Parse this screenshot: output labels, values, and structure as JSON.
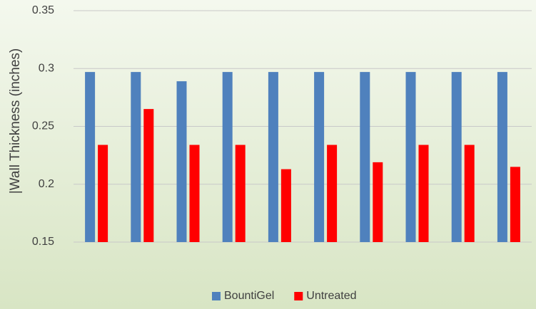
{
  "chart_data": {
    "type": "bar",
    "y_label": "|Wall Thickness (inches)",
    "categories": [
      null,
      null,
      null,
      null,
      null,
      null,
      null,
      null,
      null,
      null
    ],
    "series": [
      {
        "name": "BountiGel",
        "color": "#4f81bd",
        "values": [
          0.297,
          0.297,
          0.289,
          0.297,
          0.297,
          0.297,
          0.297,
          0.297,
          0.297,
          0.297
        ]
      },
      {
        "name": "Untreated",
        "color": "#ff0000",
        "values": [
          0.234,
          0.265,
          0.234,
          0.234,
          0.213,
          0.234,
          0.219,
          0.234,
          0.234,
          0.215
        ]
      }
    ],
    "ylim": [
      0.15,
      0.35
    ],
    "yticks": [
      0.15,
      0.2,
      0.25,
      0.3,
      0.35
    ],
    "grid": true,
    "legend": "bottom"
  }
}
